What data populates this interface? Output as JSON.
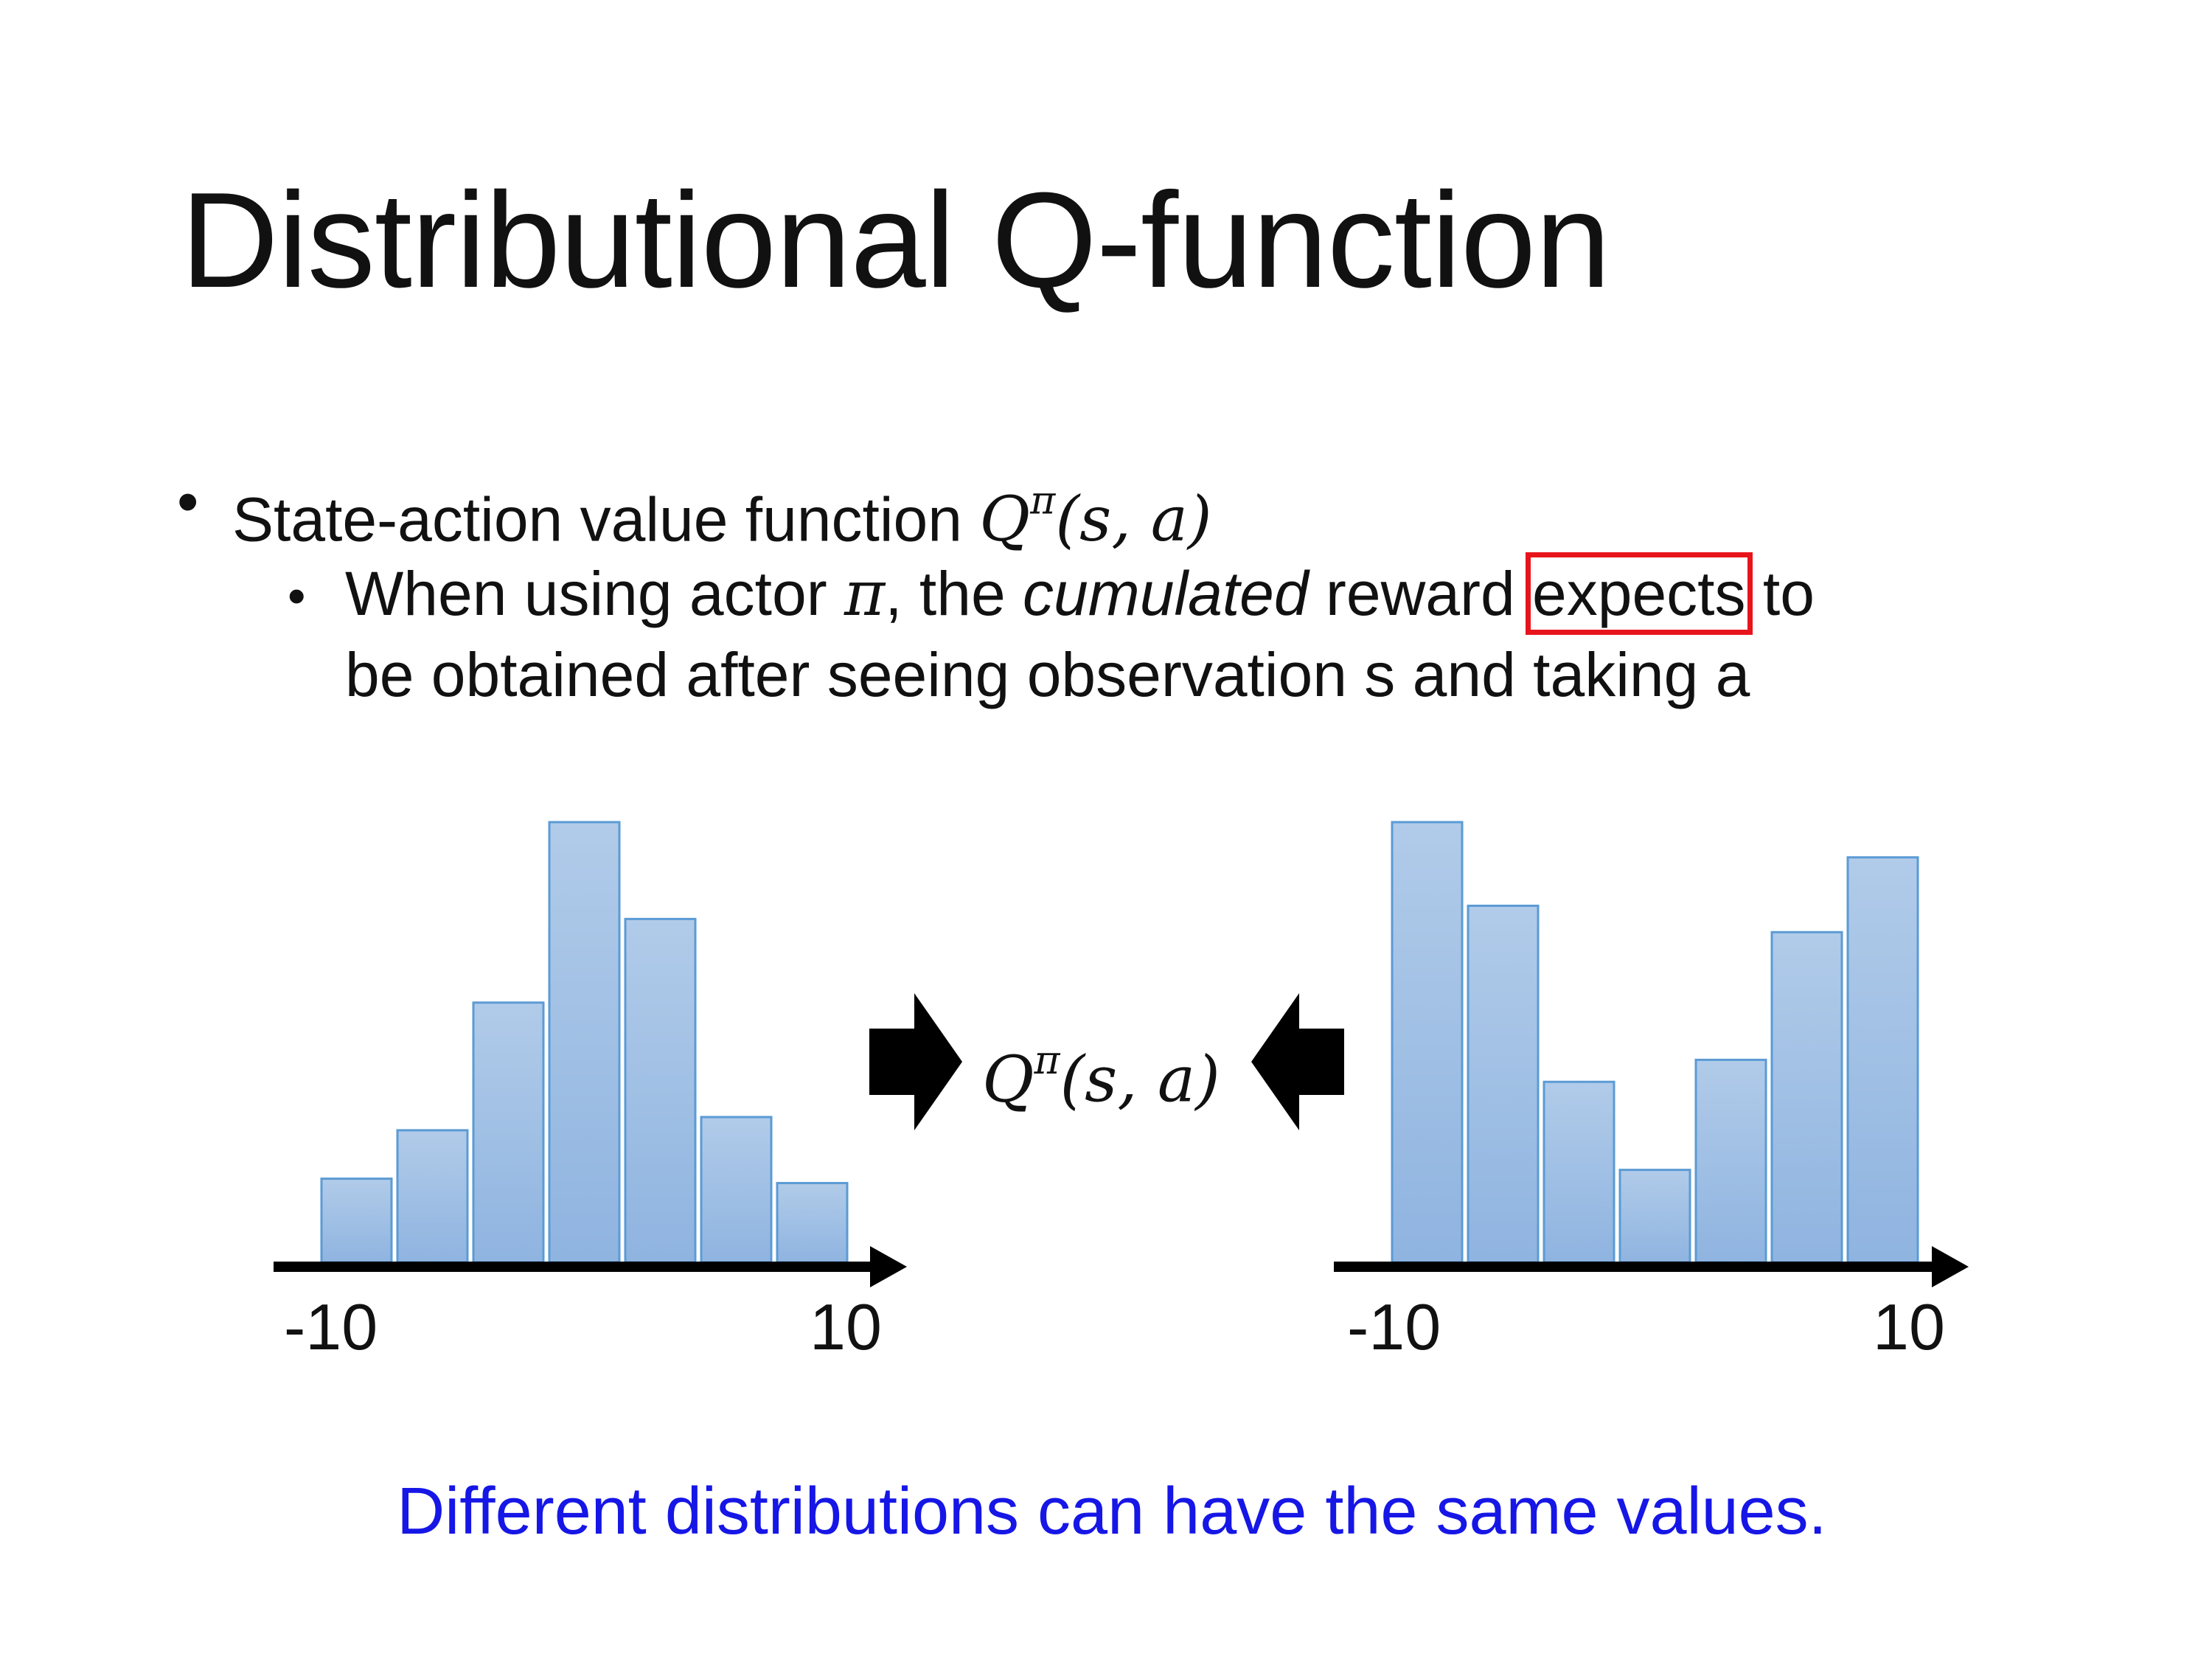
{
  "slide": {
    "title": "Distributional Q-function",
    "bullet1": {
      "text": "State-action value function ",
      "math": "Q",
      "sup": "π",
      "args": "(s, a)"
    },
    "bullet2": {
      "pre": "When using actor ",
      "pi": "π",
      "mid1": ", the ",
      "italic": "cumulated",
      "mid2": " reward ",
      "boxed": "expects",
      "post": " to",
      "line2": "be obtained after seeing observation s and taking a"
    },
    "center_formula": {
      "math": "Q",
      "sup": "π",
      "args": "(s, a)"
    },
    "caption": "Different distributions can have the same values.",
    "colors": {
      "bar_fill_top": "#b1cbe9",
      "bar_fill_bottom": "#8fb4e0",
      "bar_stroke": "#5b9bd5",
      "highlight_box": "#e8141c",
      "caption": "#1616e6"
    },
    "icons": {
      "left_arrow": "block-arrow-right-icon",
      "right_arrow": "block-arrow-left-icon"
    }
  },
  "chart_data": [
    {
      "type": "bar",
      "xmin_label": "-10",
      "xmax_label": "10",
      "xlim": [
        -10,
        10
      ],
      "bins": 7,
      "values": [
        0.19,
        0.3,
        0.59,
        1.0,
        0.78,
        0.33,
        0.18
      ]
    },
    {
      "type": "bar",
      "xmin_label": "-10",
      "xmax_label": "10",
      "xlim": [
        -10,
        10
      ],
      "bins": 7,
      "values": [
        1.0,
        0.81,
        0.41,
        0.21,
        0.46,
        0.75,
        0.92
      ]
    }
  ]
}
